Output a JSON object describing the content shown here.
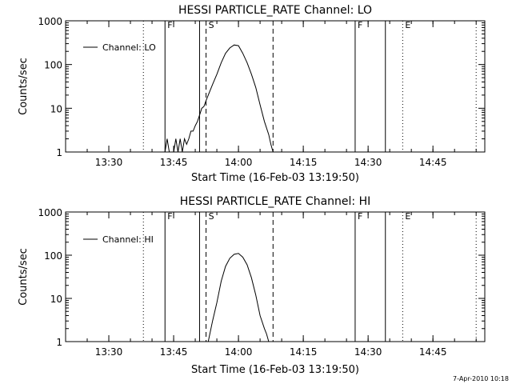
{
  "footer_timestamp": "7-Apr-2010 10:18",
  "chart_data": [
    {
      "type": "line",
      "title": "HESSI PARTICLE_RATE Channel: LO",
      "xlabel": "Start Time (16-Feb-03 13:19:50)",
      "ylabel": "Counts/sec",
      "yscale": "log",
      "xlim": [
        "13:20",
        "14:57"
      ],
      "ylim": [
        1,
        1000
      ],
      "xticks": [
        "13:30",
        "13:45",
        "14:00",
        "14:15",
        "14:30",
        "14:45"
      ],
      "yticks": [
        "1",
        "10",
        "100",
        "1000"
      ],
      "legend": {
        "position": "top-left",
        "entries": [
          "Channel: LO"
        ]
      },
      "grid": false,
      "markers": [
        {
          "time": "13:38",
          "style": "dotted",
          "label": ""
        },
        {
          "time": "13:43",
          "style": "solid",
          "label": "F"
        },
        {
          "time": "13:51",
          "style": "solid",
          "label": ""
        },
        {
          "time": "13:52.5",
          "style": "dashed",
          "label": "S"
        },
        {
          "time": "14:08",
          "style": "dashed",
          "label": ""
        },
        {
          "time": "14:27",
          "style": "solid",
          "label": "F"
        },
        {
          "time": "14:34",
          "style": "solid",
          "label": ""
        },
        {
          "time": "14:38",
          "style": "dotted",
          "label": "E"
        },
        {
          "time": "14:55",
          "style": "dotted",
          "label": ""
        }
      ],
      "series": [
        {
          "name": "Channel: LO",
          "x": [
            "13:43",
            "13:43.5",
            "13:44",
            "13:44.5",
            "13:45",
            "13:45.5",
            "13:46",
            "13:46.5",
            "13:47",
            "13:47.5",
            "13:48",
            "13:48.5",
            "13:49",
            "13:49.5",
            "13:50",
            "13:50.5",
            "13:51",
            "13:51.5",
            "13:52",
            "13:52.5",
            "13:53",
            "13:54",
            "13:55",
            "13:56",
            "13:57",
            "13:58",
            "13:59",
            "14:00",
            "14:01",
            "14:02",
            "14:03",
            "14:04",
            "14:05",
            "14:06",
            "14:07",
            "14:07.5",
            "14:08"
          ],
          "y": [
            1,
            2,
            1,
            1,
            1,
            2,
            1,
            2,
            1,
            2,
            1.5,
            2,
            3,
            3,
            4,
            5,
            7,
            10,
            11,
            15,
            20,
            35,
            60,
            110,
            180,
            240,
            280,
            270,
            180,
            110,
            60,
            30,
            12,
            5,
            2.5,
            1.5,
            1
          ]
        }
      ]
    },
    {
      "type": "line",
      "title": "HESSI PARTICLE_RATE Channel: HI",
      "xlabel": "Start Time (16-Feb-03 13:19:50)",
      "ylabel": "Counts/sec",
      "yscale": "log",
      "xlim": [
        "13:20",
        "14:57"
      ],
      "ylim": [
        1,
        1000
      ],
      "xticks": [
        "13:30",
        "13:45",
        "14:00",
        "14:15",
        "14:30",
        "14:45"
      ],
      "yticks": [
        "1",
        "10",
        "100",
        "1000"
      ],
      "legend": {
        "position": "top-left",
        "entries": [
          "Channel: HI"
        ]
      },
      "grid": false,
      "markers": [
        {
          "time": "13:38",
          "style": "dotted",
          "label": ""
        },
        {
          "time": "13:43",
          "style": "solid",
          "label": "F"
        },
        {
          "time": "13:51",
          "style": "solid",
          "label": ""
        },
        {
          "time": "13:52.5",
          "style": "dashed",
          "label": "S"
        },
        {
          "time": "14:08",
          "style": "dashed",
          "label": ""
        },
        {
          "time": "14:27",
          "style": "solid",
          "label": "F"
        },
        {
          "time": "14:34",
          "style": "solid",
          "label": ""
        },
        {
          "time": "14:38",
          "style": "dotted",
          "label": "E"
        },
        {
          "time": "14:55",
          "style": "dotted",
          "label": ""
        }
      ],
      "series": [
        {
          "name": "Channel: HI",
          "x": [
            "13:53",
            "13:54",
            "13:55",
            "13:56",
            "13:57",
            "13:58",
            "13:59",
            "14:00",
            "14:01",
            "14:02",
            "14:03",
            "14:04",
            "14:05",
            "14:06",
            "14:06.5",
            "14:07"
          ],
          "y": [
            1,
            3,
            8,
            25,
            55,
            85,
            105,
            110,
            90,
            60,
            30,
            12,
            4,
            2,
            1.5,
            1
          ]
        }
      ]
    }
  ]
}
